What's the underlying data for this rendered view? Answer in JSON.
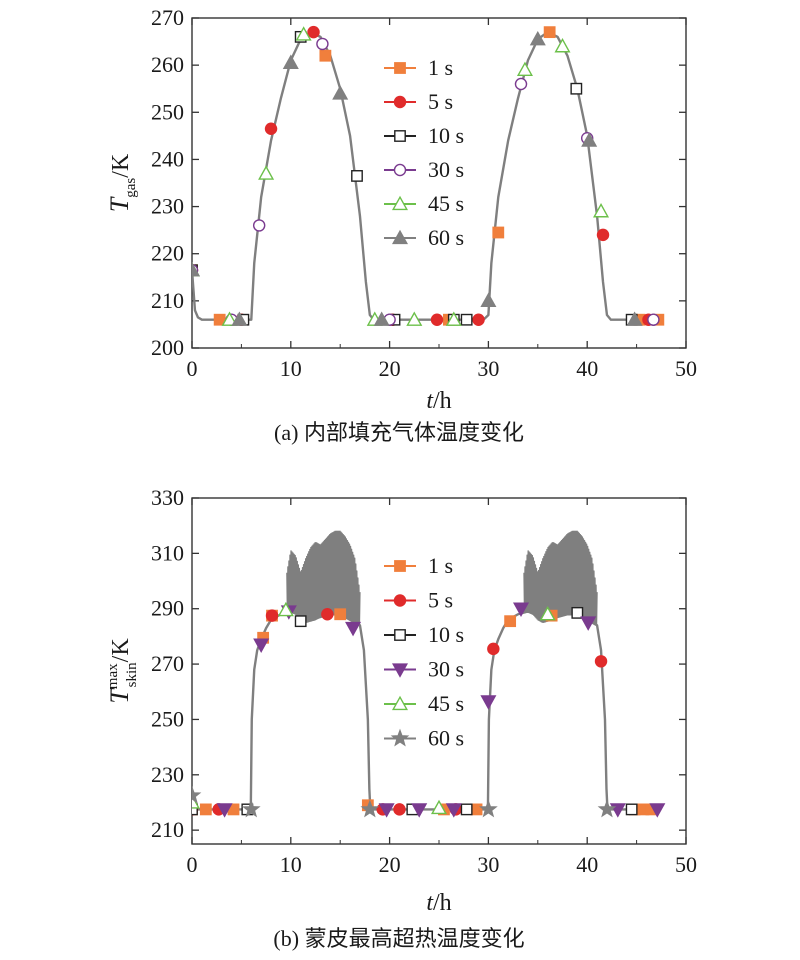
{
  "colors": {
    "1 s": "#f07f3c",
    "5 s": "#e02b2b",
    "10 s": "#222222",
    "30 s": "#7a3b8f",
    "45 s": "#6cc04a",
    "60 s": "#808080",
    "line": "#7f7f7f",
    "axis": "#333333"
  },
  "chart_data": [
    {
      "type": "line",
      "caption": "(a) 内部填充气体温度变化",
      "xlabel": {
        "main": "t",
        "unit": "/h"
      },
      "ylabel": {
        "main": "T",
        "sub": "gas",
        "unit": "/K"
      },
      "xlim": [
        0,
        50
      ],
      "ylim": [
        200,
        270
      ],
      "xticks": [
        0,
        10,
        20,
        30,
        40,
        50
      ],
      "yticks": [
        200,
        210,
        220,
        230,
        240,
        250,
        260,
        270
      ],
      "grid": false,
      "legend_position": "top-right",
      "curve": {
        "x": [
          0,
          0.3,
          0.6,
          1,
          2,
          5,
          6,
          6.3,
          7,
          8,
          9,
          10,
          11,
          12,
          13,
          14,
          15,
          16,
          17,
          17.6,
          18,
          18.4,
          20,
          25,
          29.5,
          30,
          30.3,
          31,
          32,
          33,
          34,
          35,
          36,
          37,
          38,
          39,
          40,
          41,
          41.6,
          42,
          42.4,
          44,
          47
        ],
        "y": [
          216.5,
          208,
          206.5,
          206,
          206,
          206,
          206,
          218,
          232,
          244,
          253,
          261,
          265.5,
          267,
          266,
          262,
          255,
          245,
          228,
          214,
          207,
          206,
          206,
          206,
          206,
          207,
          218,
          232,
          244,
          253,
          261,
          265.5,
          267,
          266,
          262,
          255,
          245,
          228,
          214,
          207,
          206,
          206,
          206
        ]
      },
      "series": [
        {
          "name": "1 s",
          "marker": "square-filled",
          "points": [
            [
              0,
              216.5
            ],
            [
              2.8,
              206
            ],
            [
              13.5,
              262
            ],
            [
              26,
              206
            ],
            [
              31,
              224.5
            ],
            [
              36.2,
              267
            ],
            [
              45.3,
              206
            ],
            [
              47.2,
              206
            ]
          ]
        },
        {
          "name": "5 s",
          "marker": "circle-filled",
          "points": [
            [
              0,
              216.5
            ],
            [
              5,
              206
            ],
            [
              8,
              246.5
            ],
            [
              12.3,
              267
            ],
            [
              20.3,
              206
            ],
            [
              24.8,
              206
            ],
            [
              29,
              206
            ],
            [
              41.6,
              224
            ],
            [
              46.2,
              206
            ]
          ]
        },
        {
          "name": "10 s",
          "marker": "square-open",
          "points": [
            [
              0,
              216.5
            ],
            [
              5.2,
              206
            ],
            [
              11,
              266
            ],
            [
              16.7,
              236.5
            ],
            [
              20.5,
              206
            ],
            [
              26.5,
              206
            ],
            [
              27.8,
              206
            ],
            [
              38.9,
              255
            ],
            [
              44.5,
              206
            ]
          ]
        },
        {
          "name": "30 s",
          "marker": "circle-open",
          "points": [
            [
              0,
              216.5
            ],
            [
              4,
              206
            ],
            [
              6.8,
              226
            ],
            [
              13.2,
              264.5
            ],
            [
              20,
              206
            ],
            [
              33.3,
              256
            ],
            [
              40,
              244.5
            ],
            [
              46.7,
              206
            ]
          ]
        },
        {
          "name": "45 s",
          "marker": "triangle-up-open",
          "points": [
            [
              0,
              216.5
            ],
            [
              3.8,
              206
            ],
            [
              7.5,
              237
            ],
            [
              11.3,
              266.5
            ],
            [
              18.5,
              206
            ],
            [
              22.5,
              206
            ],
            [
              26.5,
              206
            ],
            [
              33.7,
              259
            ],
            [
              37.5,
              264
            ],
            [
              41.4,
              229
            ]
          ]
        },
        {
          "name": "60 s",
          "marker": "triangle-up-filled",
          "points": [
            [
              0,
              216.5
            ],
            [
              4.8,
              206
            ],
            [
              10,
              260.5
            ],
            [
              15,
              254
            ],
            [
              19.2,
              206
            ],
            [
              30,
              210
            ],
            [
              35,
              265.5
            ],
            [
              40.2,
              244
            ],
            [
              44.8,
              206
            ]
          ]
        }
      ]
    },
    {
      "type": "line",
      "caption": "(b) 蒙皮最高超热温度变化",
      "xlabel": {
        "main": "t",
        "unit": "/h"
      },
      "ylabel": {
        "main": "T",
        "sub": "skin",
        "sup": "max",
        "unit": "/K"
      },
      "xlim": [
        0,
        50
      ],
      "ylim": [
        205,
        330
      ],
      "xticks": [
        0,
        10,
        20,
        30,
        40,
        50
      ],
      "yticks": [
        210,
        230,
        250,
        270,
        290,
        310,
        330
      ],
      "grid": false,
      "legend_position": "top-right",
      "curve": {
        "x": [
          0,
          5.95,
          6.05,
          6.3,
          6.6,
          7,
          7.5,
          8,
          9,
          10,
          11,
          12,
          13,
          14,
          15,
          16,
          17,
          17.4,
          17.8,
          17.95,
          18.05,
          20,
          29.95,
          30.05,
          30.3,
          30.6,
          31,
          31.5,
          32,
          33,
          34,
          35,
          36,
          37,
          38,
          39,
          40,
          41,
          41.4,
          41.8,
          41.95,
          42.05,
          47
        ],
        "y": [
          217.5,
          217.5,
          250,
          268,
          275,
          279,
          283,
          286,
          288,
          289,
          287.5,
          286,
          287,
          288,
          288,
          286,
          284,
          275,
          250,
          225,
          217.5,
          217.5,
          217.5,
          250,
          268,
          275,
          279,
          283,
          286,
          288,
          289,
          287.5,
          286,
          287,
          288,
          288,
          286,
          284,
          275,
          250,
          225,
          217.5,
          217.5
        ]
      },
      "oscillation": {
        "upper": {
          "x": [
            9.6,
            10,
            10.5,
            11,
            11.5,
            12,
            12.5,
            13,
            13.5,
            14,
            14.5,
            15,
            15.5,
            16,
            16.5,
            17
          ],
          "y": [
            303,
            311,
            309,
            303,
            308,
            312,
            314,
            313,
            315,
            317,
            318,
            318,
            316,
            313,
            308,
            296
          ]
        },
        "lower": {
          "x": [
            9.6,
            10,
            10.5,
            11,
            11.5,
            12,
            12.5,
            13,
            13.5,
            14,
            14.5,
            15,
            15.5,
            16,
            16.5,
            17
          ],
          "y": [
            289,
            289,
            288,
            286,
            285,
            285.5,
            286,
            287,
            288,
            288,
            288,
            288,
            287,
            286,
            285,
            284
          ]
        }
      },
      "oscillation2": {
        "upper": {
          "x": [
            33.6,
            34,
            34.5,
            35,
            35.5,
            36,
            36.5,
            37,
            37.5,
            38,
            38.5,
            39,
            39.5,
            40,
            40.5,
            41
          ],
          "y": [
            303,
            311,
            309,
            303,
            308,
            312,
            314,
            313,
            315,
            317,
            318,
            318,
            316,
            313,
            308,
            296
          ]
        },
        "lower": {
          "x": [
            33.6,
            34,
            34.5,
            35,
            35.5,
            36,
            36.5,
            37,
            37.5,
            38,
            38.5,
            39,
            39.5,
            40,
            40.5,
            41
          ],
          "y": [
            289,
            289,
            288,
            286,
            285,
            285.5,
            286,
            287,
            288,
            288,
            288,
            288,
            287,
            286,
            285,
            284
          ]
        }
      },
      "series": [
        {
          "name": "1 s",
          "marker": "square-filled",
          "points": [
            [
              0,
              217.5
            ],
            [
              1.4,
              217.5
            ],
            [
              4.2,
              217.5
            ],
            [
              7.2,
              279.5
            ],
            [
              8.1,
              287.5
            ],
            [
              15,
              288
            ],
            [
              17.8,
              219
            ],
            [
              25.5,
              217.5
            ],
            [
              28.8,
              217.5
            ],
            [
              32.2,
              285.5
            ],
            [
              36.4,
              287.5
            ],
            [
              44.8,
              217.5
            ],
            [
              45.7,
              217.5
            ],
            [
              46.5,
              217.5
            ]
          ]
        },
        {
          "name": "5 s",
          "marker": "circle-filled",
          "points": [
            [
              0,
              217.5
            ],
            [
              2.7,
              217.5
            ],
            [
              8.1,
              287.5
            ],
            [
              13.7,
              288
            ],
            [
              19.3,
              217.5
            ],
            [
              21,
              217.5
            ],
            [
              26.7,
              217.5
            ],
            [
              30.5,
              275.5
            ],
            [
              41.4,
              271
            ]
          ]
        },
        {
          "name": "10 s",
          "marker": "square-open",
          "points": [
            [
              0,
              217.5
            ],
            [
              5.6,
              217.5
            ],
            [
              11,
              285.5
            ],
            [
              22.3,
              217.5
            ],
            [
              27.8,
              217.5
            ],
            [
              39,
              288.5
            ],
            [
              44.5,
              217.5
            ]
          ]
        },
        {
          "name": "30 s",
          "marker": "triangle-down-filled",
          "points": [
            [
              3.3,
              217.5
            ],
            [
              7,
              277
            ],
            [
              9.8,
              289
            ],
            [
              16.3,
              283
            ],
            [
              19.7,
              217.5
            ],
            [
              23,
              217.5
            ],
            [
              26.5,
              217.5
            ],
            [
              30,
              256.5
            ],
            [
              33.3,
              290
            ],
            [
              40.1,
              285
            ],
            [
              43.1,
              217.5
            ],
            [
              47.1,
              217.5
            ]
          ]
        },
        {
          "name": "45 s",
          "marker": "triangle-up-open",
          "points": [
            [
              0,
              220
            ],
            [
              9.5,
              289.5
            ],
            [
              25,
              218
            ],
            [
              36,
              288
            ]
          ]
        },
        {
          "name": "60 s",
          "marker": "star-filled",
          "points": [
            [
              0,
              222.5
            ],
            [
              6,
              217.5
            ],
            [
              18,
              217.5
            ],
            [
              30,
              217.5
            ],
            [
              42,
              217.5
            ]
          ]
        }
      ]
    }
  ]
}
